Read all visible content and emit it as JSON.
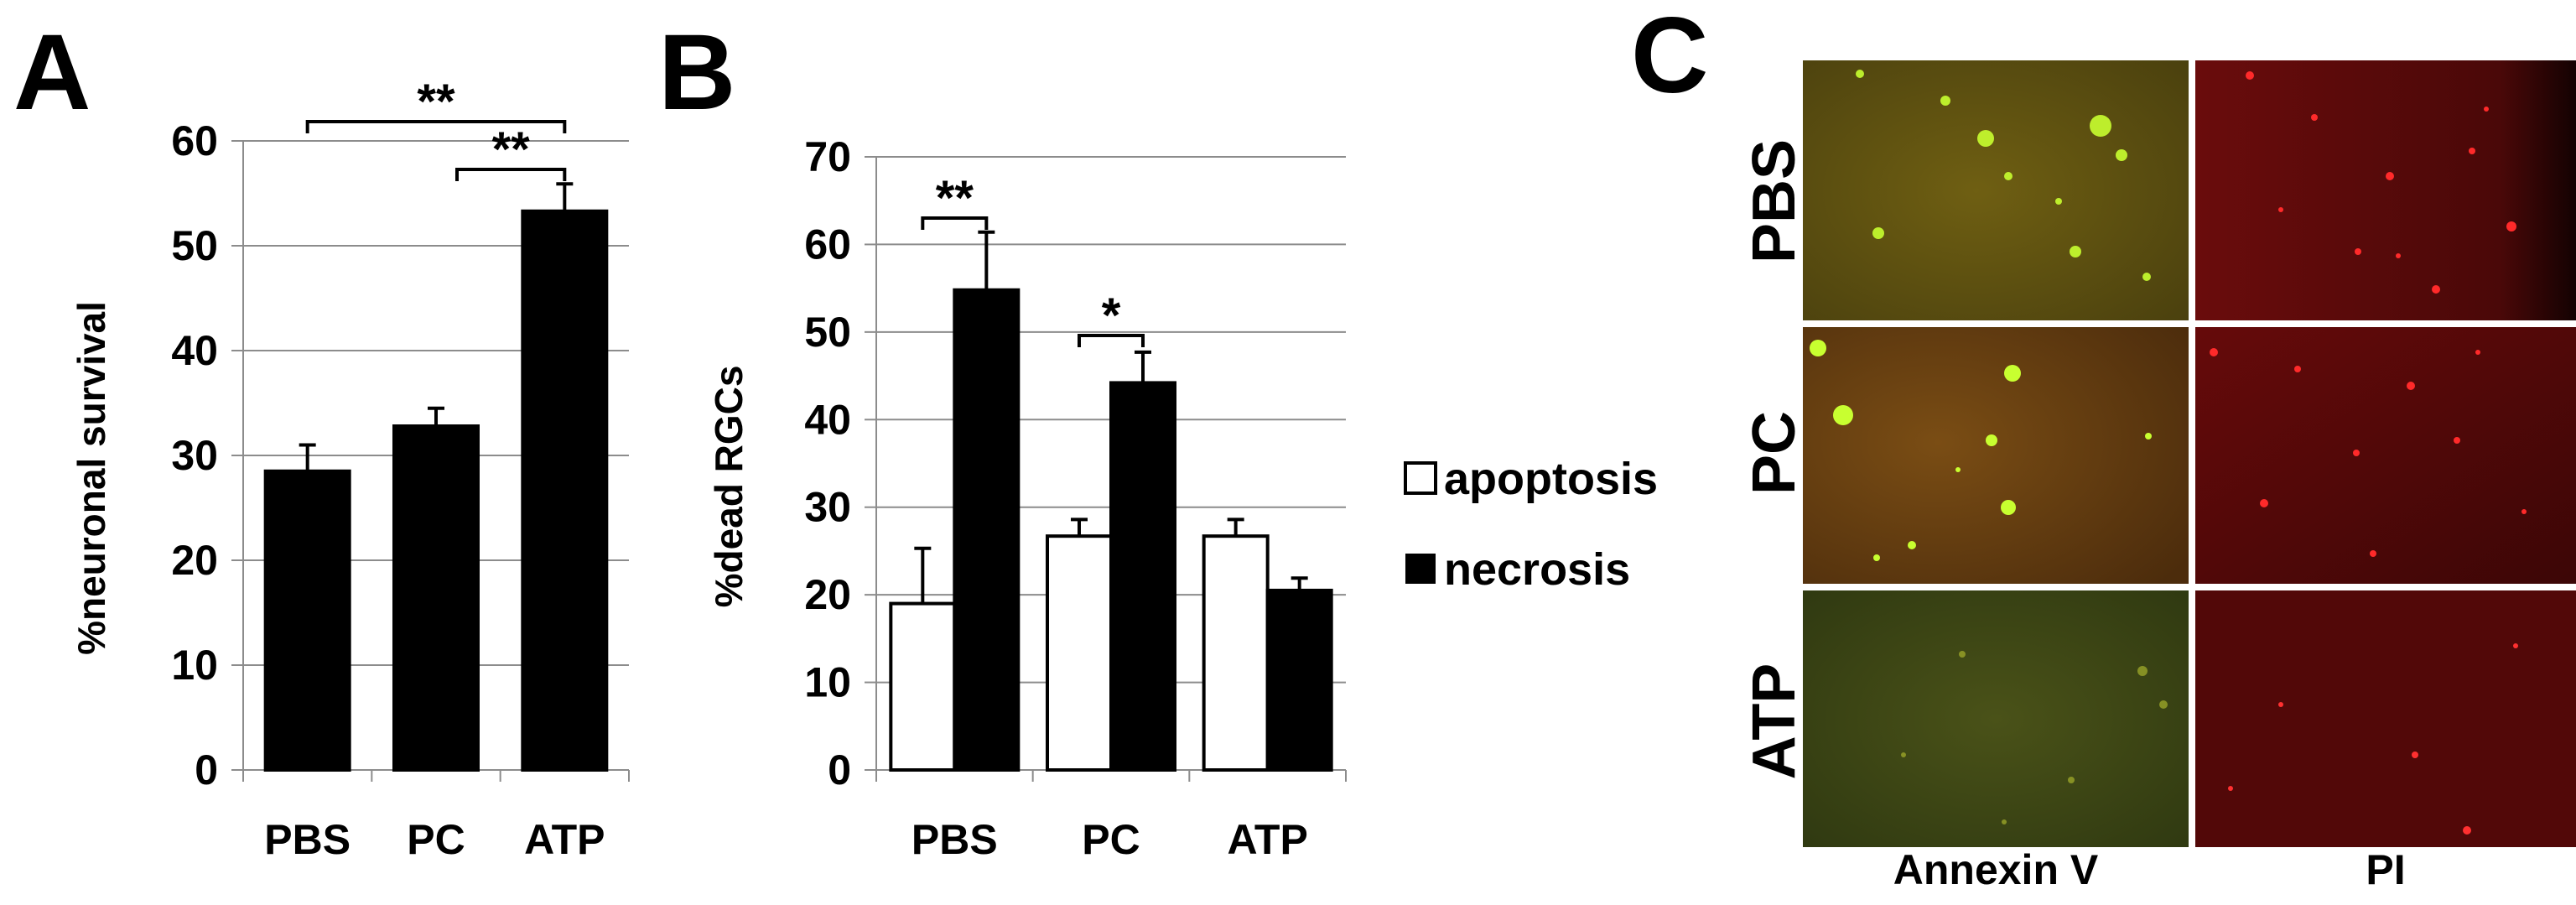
{
  "panels": {
    "a": {
      "letter": "A"
    },
    "b": {
      "letter": "B"
    },
    "c": {
      "letter": "C"
    }
  },
  "chart_data": [
    {
      "type": "bar",
      "panel": "A",
      "categories": [
        "PBS",
        "PC",
        "ATP"
      ],
      "series": [
        {
          "values": [
            28.5,
            32.8,
            53.3
          ],
          "errors": [
            2.5,
            1.7,
            2.6
          ],
          "color": "#000000"
        }
      ],
      "ylabel": "%neuronal survival",
      "ylim": [
        0,
        60
      ],
      "yticks": [
        0,
        10,
        20,
        30,
        40,
        50,
        60
      ],
      "grid": true,
      "significance": [
        {
          "from": 0,
          "to": 2,
          "label": "**"
        },
        {
          "from": 1,
          "to": 2,
          "label": "**"
        }
      ]
    },
    {
      "type": "bar",
      "panel": "B",
      "categories": [
        "PBS",
        "PC",
        "ATP"
      ],
      "series": [
        {
          "name": "apoptosis",
          "values": [
            19.0,
            26.7,
            26.7
          ],
          "errors": [
            6.3,
            1.9,
            1.9
          ],
          "color": "#ffffff"
        },
        {
          "name": "necrosis",
          "values": [
            54.8,
            44.2,
            20.5
          ],
          "errors": [
            6.6,
            3.5,
            1.4
          ],
          "color": "#000000"
        }
      ],
      "ylabel": "%dead RGCs",
      "ylim": [
        0,
        70
      ],
      "yticks": [
        0,
        10,
        20,
        30,
        40,
        50,
        60,
        70
      ],
      "grid": true,
      "legend": "right",
      "significance": [
        {
          "category": 0,
          "label": "**"
        },
        {
          "category": 1,
          "label": "*"
        }
      ]
    }
  ],
  "micrographs": {
    "rows": [
      "PBS",
      "PC",
      "ATP"
    ],
    "columns": [
      "Annexin V",
      "PI"
    ],
    "colors": {
      "annexin_bg": "#6b5a10",
      "annexin_dot": "#c8ff30",
      "pi_bg": "#5a0a0a",
      "pi_dot": "#ff2a2a"
    }
  }
}
